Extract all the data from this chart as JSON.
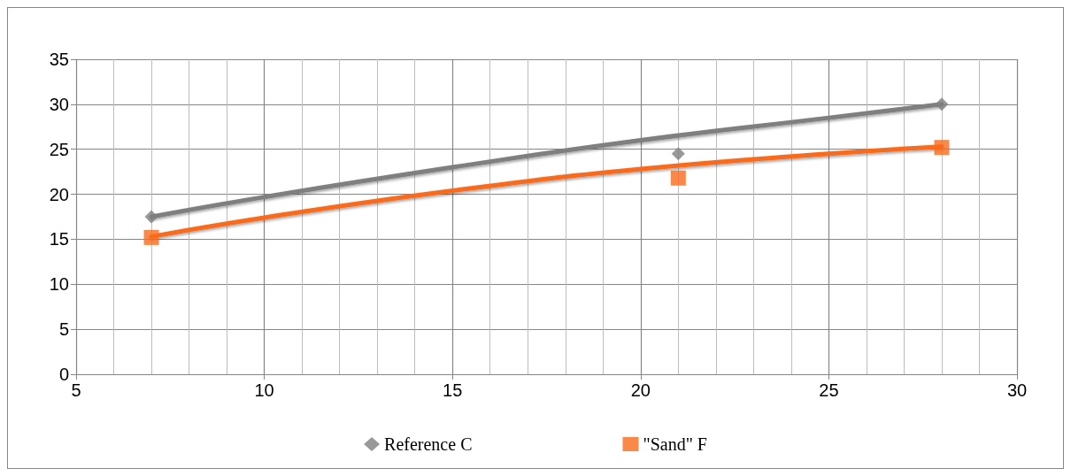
{
  "chart_data": {
    "type": "scatter",
    "xlim": [
      5,
      30
    ],
    "xticks": [
      5,
      10,
      15,
      20,
      25,
      30
    ],
    "ylim": [
      0,
      35
    ],
    "yticks": [
      0,
      5,
      10,
      15,
      20,
      25,
      30,
      35
    ],
    "grid": true,
    "legend": "bottom",
    "series": [
      {
        "name": "Reference C",
        "color": "#7f7f7f",
        "marker": "diamond",
        "x": [
          7,
          21,
          28
        ],
        "values": [
          17.5,
          24.5,
          30
        ]
      },
      {
        "name": "\"Sand\" F",
        "color": "#f96b1b",
        "marker": "square",
        "x": [
          7,
          21,
          28
        ],
        "values": [
          15.2,
          21.8,
          25.2
        ]
      },
      {
        "type": "line",
        "color": "#7f7f7f",
        "marker": "none",
        "x": [
          7,
          10,
          15,
          20,
          25,
          28
        ],
        "values": [
          17.5,
          19.7,
          23.0,
          26.0,
          28.5,
          30.0
        ]
      },
      {
        "type": "line",
        "color": "#f96b1b",
        "marker": "none",
        "x": [
          7,
          10,
          15,
          20,
          25,
          28
        ],
        "values": [
          15.3,
          17.4,
          20.4,
          22.8,
          24.5,
          25.3
        ]
      }
    ]
  }
}
